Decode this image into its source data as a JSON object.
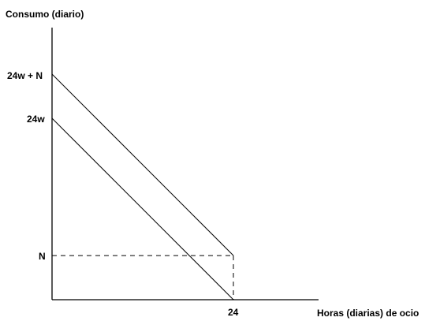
{
  "chart_data": {
    "type": "line",
    "ylabel": "Consumo (diario)",
    "xlabel": "Horas (diarias) de ocio",
    "y_ticks": [
      {
        "key": "top",
        "label": "24w + N"
      },
      {
        "key": "mid",
        "label": "24w"
      },
      {
        "key": "low",
        "label": "N"
      }
    ],
    "x_ticks": [
      {
        "label": "24",
        "value": 24
      }
    ],
    "series": [
      {
        "points": [
          {
            "x": 0,
            "y": "24w + N"
          },
          {
            "x": 24,
            "y": "N"
          }
        ],
        "style": "solid"
      },
      {
        "points": [
          {
            "x": 0,
            "y": "24w"
          },
          {
            "x": 24,
            "y": "0"
          }
        ],
        "style": "solid"
      }
    ],
    "reference_lines": [
      {
        "from": {
          "x": 0,
          "y": "N"
        },
        "to": {
          "x": 24,
          "y": "N"
        },
        "style": "dashed"
      },
      {
        "from": {
          "x": 24,
          "y": "N"
        },
        "to": {
          "x": 24,
          "y": "0"
        },
        "style": "dashed"
      }
    ],
    "grid": false,
    "legend": "none"
  }
}
